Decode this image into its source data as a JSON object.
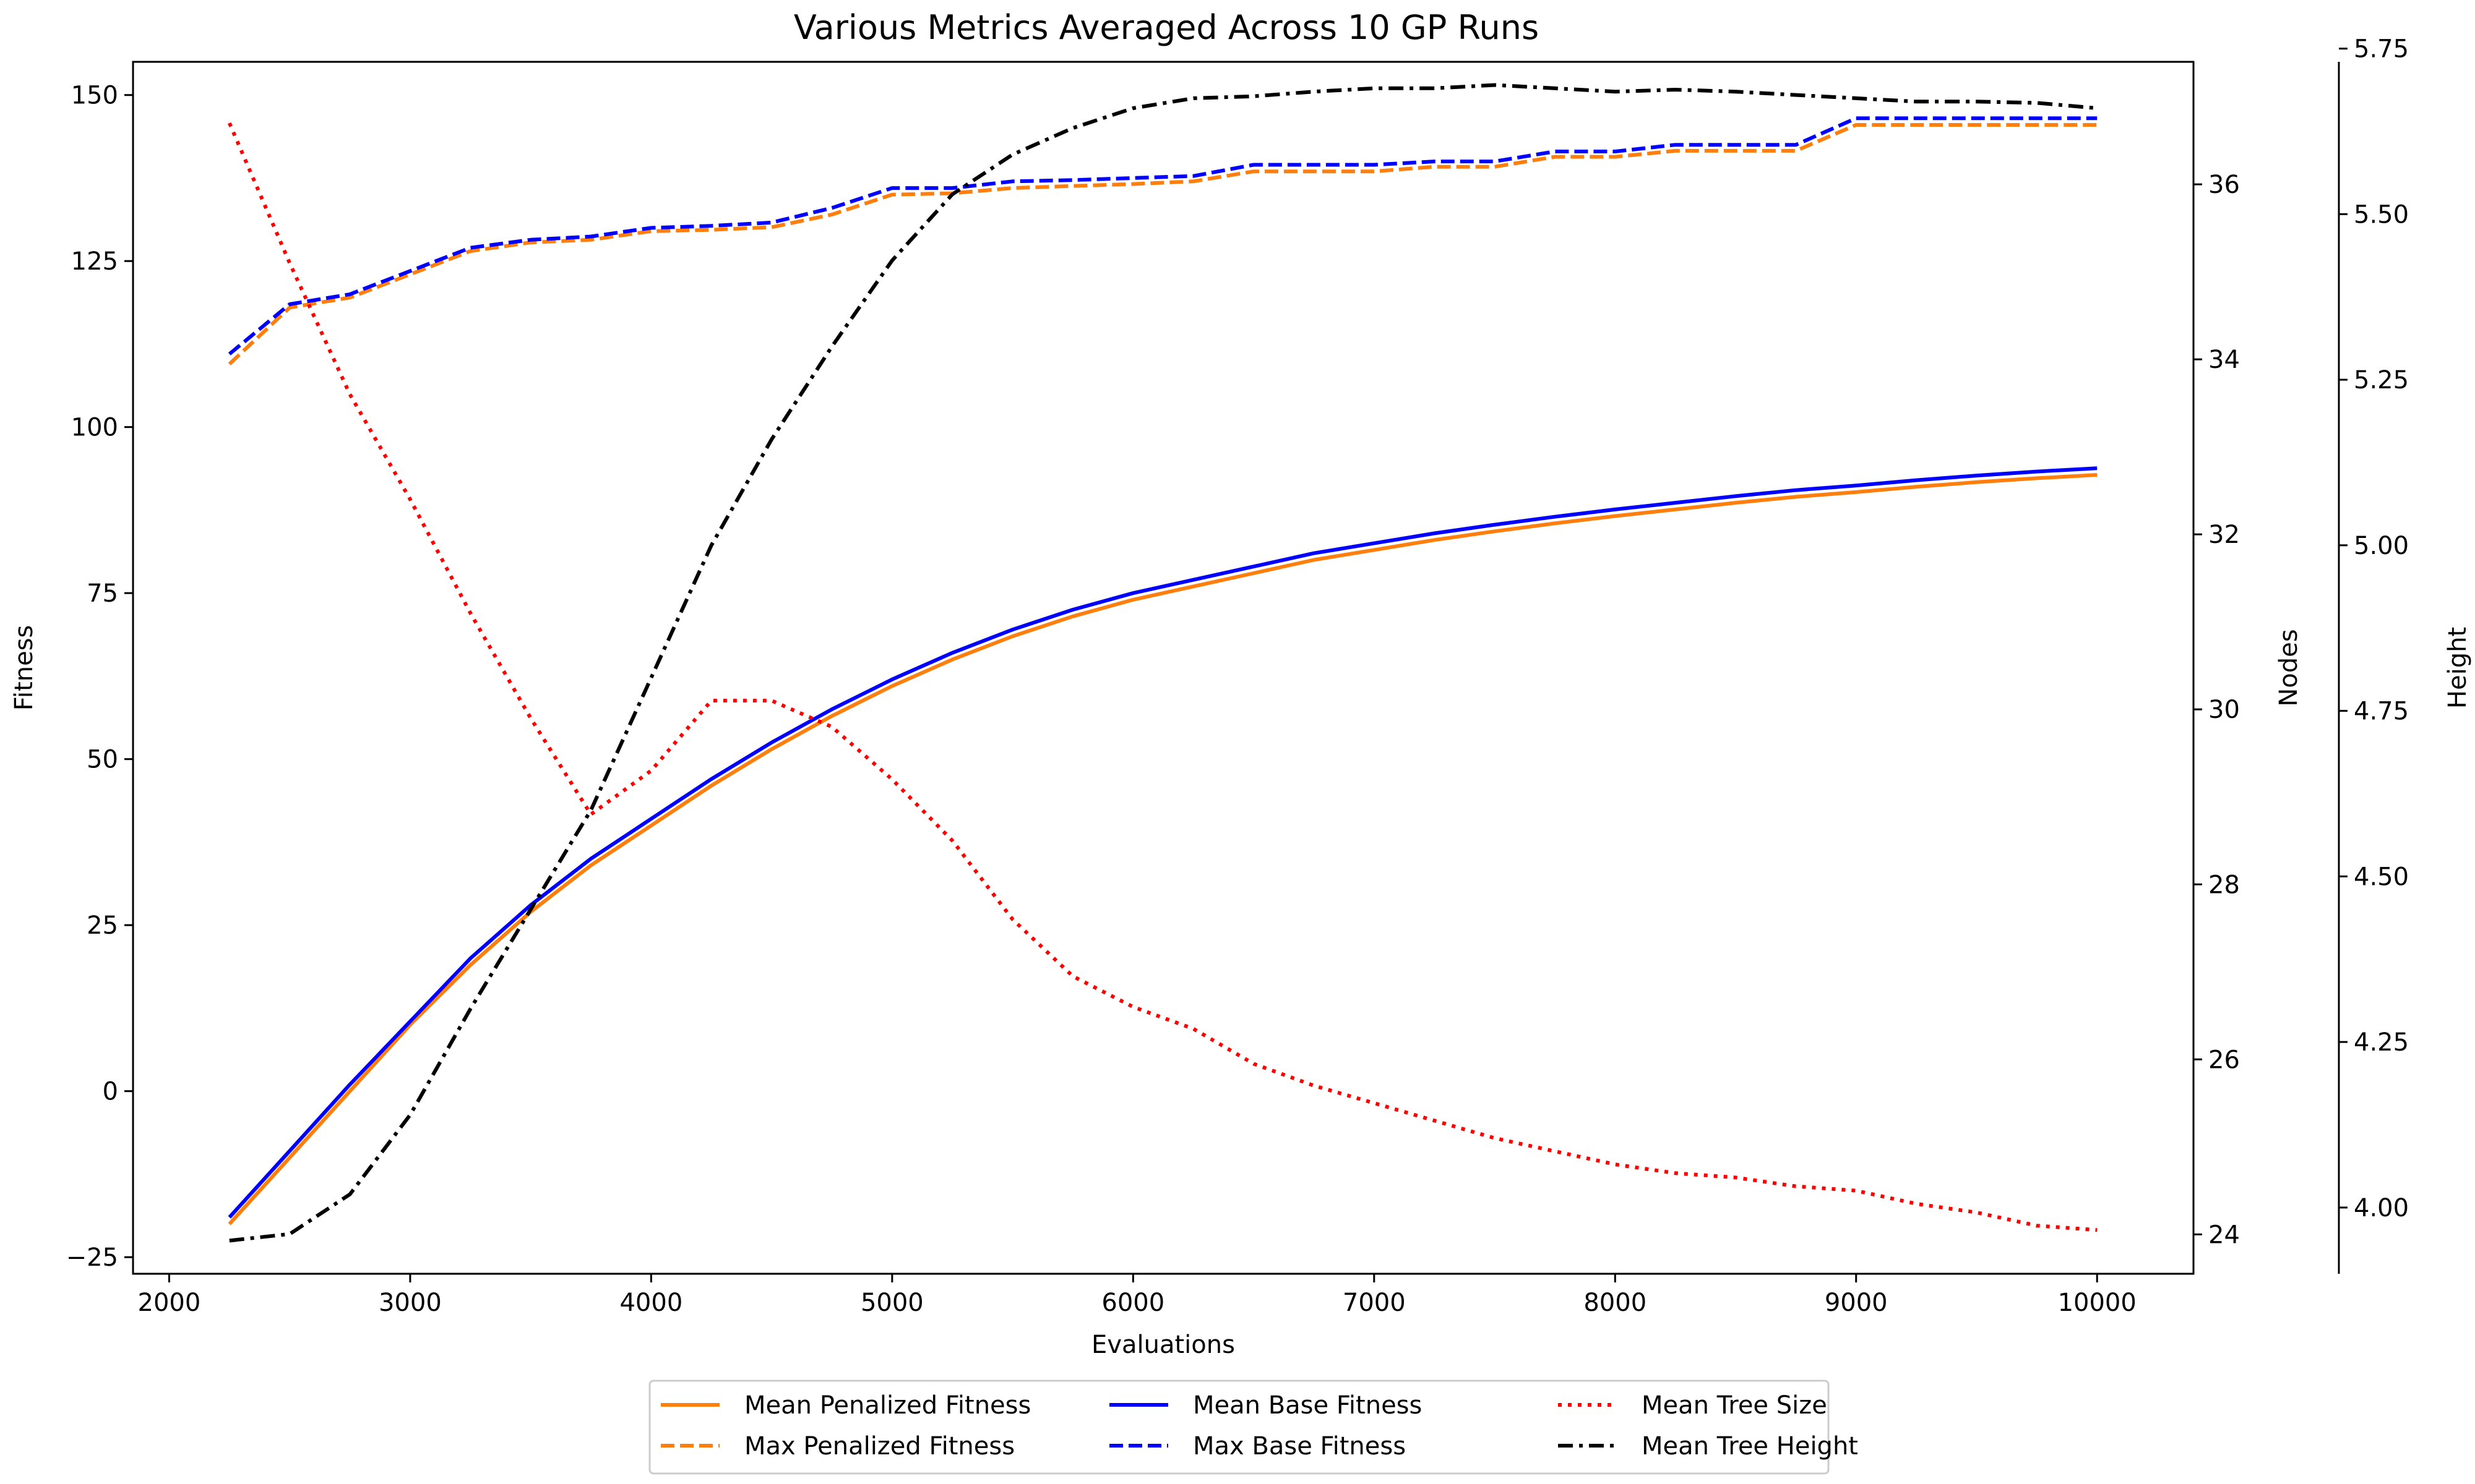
{
  "chart_data": {
    "type": "line",
    "title": "Various Metrics Averaged Across 10 GP Runs",
    "xlabel": "Evaluations",
    "ylabel": "Fitness",
    "y2label": "Nodes",
    "y3label": "Height",
    "xlim": [
      1850,
      10400
    ],
    "ylim": [
      -27.5,
      155
    ],
    "y2lim": [
      23.55,
      37.4
    ],
    "y3lim": [
      3.9,
      5.73
    ],
    "xticks": [
      "2000",
      "3000",
      "4000",
      "5000",
      "6000",
      "7000",
      "8000",
      "9000",
      "10000"
    ],
    "yticks": [
      "−25",
      "0",
      "25",
      "50",
      "75",
      "100",
      "125",
      "150"
    ],
    "y2ticks": [
      "24",
      "26",
      "28",
      "30",
      "32",
      "34",
      "36"
    ],
    "y3ticks": [
      "4.00",
      "4.25",
      "4.50",
      "4.75",
      "5.00",
      "5.25",
      "5.50",
      "5.75"
    ],
    "x": [
      2250,
      2500,
      2750,
      3000,
      3250,
      3500,
      3750,
      4000,
      4250,
      4500,
      4750,
      5000,
      5250,
      5500,
      5750,
      6000,
      6250,
      6500,
      6750,
      7000,
      7250,
      7500,
      7750,
      8000,
      8250,
      8500,
      8750,
      9000,
      9250,
      9500,
      9750,
      10000
    ],
    "series": [
      {
        "name": "Mean Penalized Fitness",
        "axis": "left",
        "color": "#ff7f0e",
        "dash": "solid",
        "values": [
          -20,
          -10,
          0,
          10,
          19,
          27,
          34,
          40,
          46,
          51.5,
          56.5,
          61,
          65,
          68.5,
          71.5,
          74,
          76,
          78,
          80,
          81.5,
          83,
          84.3,
          85.5,
          86.6,
          87.6,
          88.6,
          89.5,
          90.2,
          91,
          91.7,
          92.3,
          92.8
        ]
      },
      {
        "name": "Max Penalized Fitness",
        "axis": "left",
        "color": "#ff7f0e",
        "dash": "dashed",
        "values": [
          109.5,
          118,
          119.5,
          123,
          126.5,
          127.8,
          128.2,
          129.5,
          129.7,
          130.1,
          132,
          135,
          135.2,
          136,
          136.3,
          136.6,
          137,
          138.5,
          138.5,
          138.5,
          139.2,
          139.2,
          140.7,
          140.7,
          141.6,
          141.6,
          141.6,
          145.5,
          145.5,
          145.5,
          145.5,
          145.5
        ]
      },
      {
        "name": "Mean Base Fitness",
        "axis": "left",
        "color": "#0000ff",
        "dash": "solid",
        "values": [
          -19,
          -9,
          1,
          10.5,
          20,
          28,
          35,
          41,
          47,
          52.5,
          57.5,
          62,
          66,
          69.5,
          72.5,
          75,
          77,
          79,
          81,
          82.5,
          84,
          85.3,
          86.5,
          87.6,
          88.6,
          89.6,
          90.5,
          91.2,
          92,
          92.7,
          93.3,
          93.8
        ]
      },
      {
        "name": "Max Base Fitness",
        "axis": "left",
        "color": "#0000ff",
        "dash": "dashed",
        "values": [
          111,
          118.5,
          120,
          123.5,
          127,
          128.2,
          128.7,
          130,
          130.3,
          130.8,
          133,
          136,
          136,
          137,
          137.2,
          137.5,
          137.8,
          139.5,
          139.5,
          139.5,
          140,
          140,
          141.5,
          141.5,
          142.5,
          142.5,
          142.5,
          146.5,
          146.5,
          146.5,
          146.5,
          146.5
        ]
      },
      {
        "name": "Mean Tree Size",
        "axis": "right",
        "color": "#ff0000",
        "dash": "dotted",
        "values": [
          36.7,
          35.1,
          33.6,
          32.4,
          31.1,
          29.9,
          28.8,
          29.3,
          30.1,
          30.1,
          29.8,
          29.2,
          28.5,
          27.6,
          26.95,
          26.6,
          26.35,
          25.95,
          25.7,
          25.5,
          25.3,
          25.1,
          24.95,
          24.8,
          24.7,
          24.65,
          24.55,
          24.5,
          24.35,
          24.25,
          24.1,
          24.05
        ]
      },
      {
        "name": "Mean Tree Height",
        "axis": "third",
        "color": "#000000",
        "dash": "dashdot",
        "values": [
          3.95,
          3.96,
          4.02,
          4.14,
          4.3,
          4.45,
          4.6,
          4.8,
          5.0,
          5.16,
          5.3,
          5.43,
          5.53,
          5.59,
          5.63,
          5.66,
          5.675,
          5.678,
          5.685,
          5.69,
          5.69,
          5.695,
          5.69,
          5.685,
          5.688,
          5.685,
          5.68,
          5.675,
          5.67,
          5.67,
          5.668,
          5.66
        ]
      }
    ],
    "legend_position": "bottom-center",
    "grid": false
  }
}
